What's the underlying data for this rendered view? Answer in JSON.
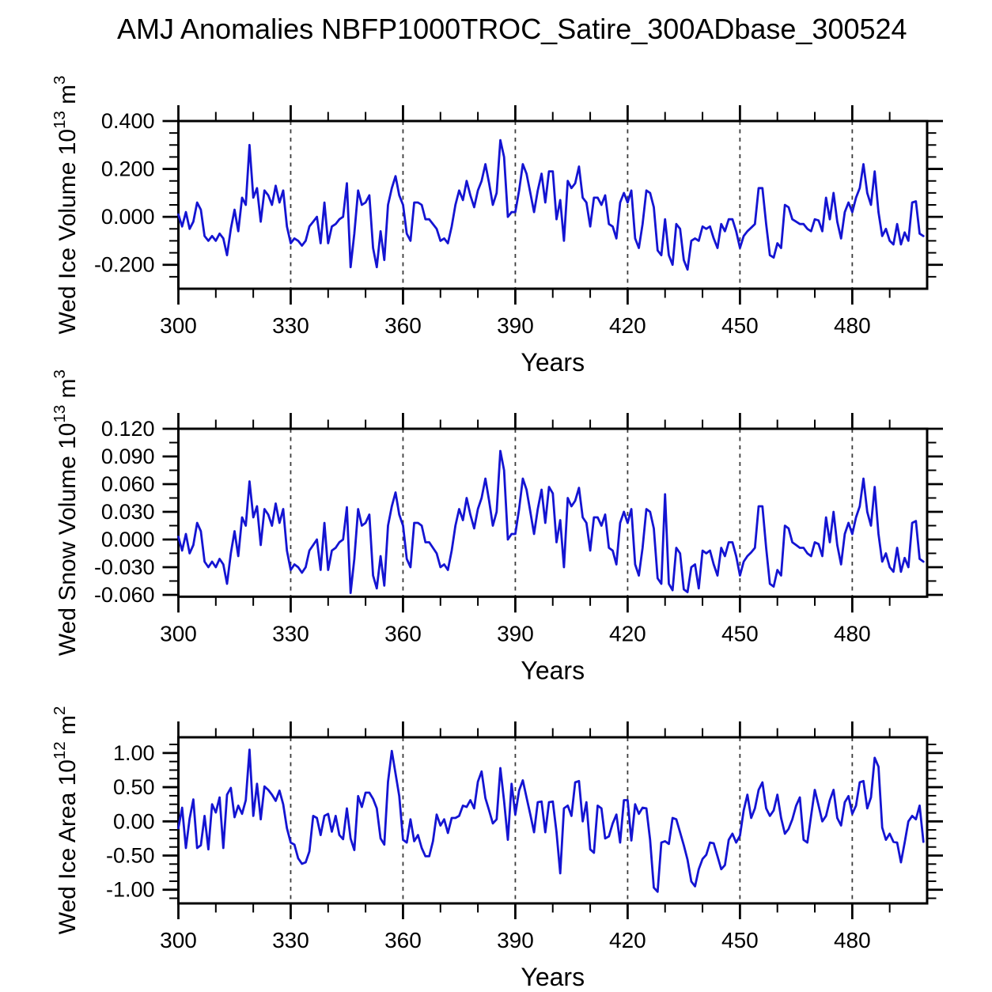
{
  "title": "AMJ Anomalies NBFP1000TROC_Satire_300ADbase_300524",
  "chart_data": {
    "type": "line",
    "title": "AMJ Anomalies NBFP1000TROC_Satire_300ADbase_300524",
    "xlabel": "Years",
    "line_color": "#1414d2",
    "frame_color": "#000000",
    "grid_color": "#3c3c3c",
    "grid": "dashed-vertical",
    "legend": "none",
    "x": {
      "start": 300,
      "step": 1,
      "lim": [
        300,
        500
      ],
      "ticks": [
        300,
        330,
        360,
        390,
        420,
        450,
        480
      ],
      "tick_labels": [
        "300",
        "330",
        "360",
        "390",
        "420",
        "450",
        "480"
      ],
      "minor_step": 10,
      "grid_years": [
        330,
        360,
        390,
        420,
        450,
        480
      ]
    },
    "panels": [
      {
        "name": "ice-volume",
        "ylabel_parts": [
          {
            "text": "Wed Ice Volume 10",
            "sup": false
          },
          {
            "text": "13",
            "sup": true
          },
          {
            "text": " m",
            "sup": false
          },
          {
            "text": "3",
            "sup": true
          }
        ],
        "ylim": [
          -0.3,
          0.4
        ],
        "yticks": [
          0.4,
          0.2,
          0.0,
          -0.2
        ],
        "ytick_labels": [
          "0.400",
          "0.200",
          "0.000",
          "-0.200"
        ],
        "y_minor_step": 0.05,
        "values": [
          0.01,
          -0.04,
          0.02,
          -0.05,
          -0.02,
          0.06,
          0.03,
          -0.08,
          -0.1,
          -0.08,
          -0.1,
          -0.07,
          -0.09,
          -0.16,
          -0.05,
          0.03,
          -0.06,
          0.08,
          0.05,
          0.3,
          0.08,
          0.12,
          -0.02,
          0.11,
          0.09,
          0.05,
          0.13,
          0.06,
          0.11,
          -0.04,
          -0.11,
          -0.09,
          -0.1,
          -0.12,
          -0.1,
          -0.04,
          -0.02,
          0.0,
          -0.11,
          0.06,
          -0.11,
          -0.04,
          -0.03,
          -0.01,
          0.0,
          0.14,
          -0.21,
          -0.07,
          0.11,
          0.05,
          0.06,
          0.09,
          -0.13,
          -0.21,
          -0.06,
          -0.18,
          0.05,
          0.12,
          0.17,
          0.09,
          0.05,
          -0.07,
          -0.1,
          0.06,
          0.06,
          0.05,
          -0.01,
          -0.01,
          -0.03,
          -0.05,
          -0.1,
          -0.09,
          -0.11,
          -0.04,
          0.05,
          0.11,
          0.07,
          0.15,
          0.09,
          0.04,
          0.11,
          0.15,
          0.22,
          0.14,
          0.05,
          0.1,
          0.32,
          0.25,
          0.0,
          0.02,
          0.02,
          0.11,
          0.22,
          0.18,
          0.1,
          0.02,
          0.11,
          0.18,
          0.06,
          0.19,
          0.19,
          -0.01,
          0.07,
          -0.1,
          0.15,
          0.12,
          0.14,
          0.21,
          0.08,
          0.06,
          -0.04,
          0.08,
          0.08,
          0.05,
          0.09,
          -0.03,
          -0.04,
          -0.09,
          0.06,
          0.1,
          0.06,
          0.11,
          -0.09,
          -0.13,
          -0.03,
          0.11,
          0.1,
          0.04,
          -0.14,
          -0.16,
          -0.01,
          -0.16,
          -0.2,
          -0.03,
          -0.05,
          -0.18,
          -0.22,
          -0.1,
          -0.09,
          -0.1,
          -0.04,
          -0.05,
          -0.04,
          -0.09,
          -0.13,
          -0.03,
          -0.06,
          -0.01,
          -0.01,
          -0.06,
          -0.13,
          -0.08,
          -0.06,
          -0.045,
          -0.03,
          0.12,
          0.12,
          -0.03,
          -0.16,
          -0.17,
          -0.11,
          -0.13,
          0.05,
          0.04,
          -0.01,
          -0.02,
          -0.03,
          -0.03,
          -0.05,
          -0.06,
          -0.01,
          -0.015,
          -0.06,
          0.08,
          -0.01,
          0.1,
          -0.02,
          -0.09,
          0.02,
          0.06,
          0.02,
          0.08,
          0.12,
          0.22,
          0.1,
          0.05,
          0.19,
          0.02,
          -0.08,
          -0.05,
          -0.1,
          -0.115,
          -0.03,
          -0.115,
          -0.065,
          -0.1,
          0.06,
          0.065,
          -0.07,
          -0.08
        ]
      },
      {
        "name": "snow-volume",
        "ylabel_parts": [
          {
            "text": "Wed Snow Volume 10",
            "sup": false
          },
          {
            "text": "13",
            "sup": true
          },
          {
            "text": " m",
            "sup": false
          },
          {
            "text": "3",
            "sup": true
          }
        ],
        "ylim": [
          -0.062,
          0.12
        ],
        "yticks": [
          0.12,
          0.09,
          0.06,
          0.03,
          0.0,
          -0.03,
          -0.06
        ],
        "ytick_labels": [
          "0.120",
          "0.090",
          "0.060",
          "0.030",
          "0.000",
          "-0.030",
          "-0.060"
        ],
        "y_minor_step": 0.015,
        "values": [
          0.003,
          -0.012,
          0.006,
          -0.015,
          -0.006,
          0.018,
          0.009,
          -0.024,
          -0.03,
          -0.024,
          -0.03,
          -0.021,
          -0.027,
          -0.048,
          -0.015,
          0.009,
          -0.018,
          0.024,
          0.015,
          0.063,
          0.024,
          0.036,
          -0.006,
          0.033,
          0.027,
          0.015,
          0.039,
          0.018,
          0.033,
          -0.012,
          -0.033,
          -0.027,
          -0.03,
          -0.036,
          -0.03,
          -0.012,
          -0.006,
          0.0,
          -0.033,
          0.018,
          -0.033,
          -0.012,
          -0.009,
          -0.003,
          0.0,
          0.035,
          -0.058,
          -0.021,
          0.033,
          0.015,
          0.018,
          0.027,
          -0.039,
          -0.053,
          -0.018,
          -0.05,
          0.015,
          0.036,
          0.051,
          0.027,
          0.015,
          -0.021,
          -0.03,
          0.018,
          0.018,
          0.015,
          -0.003,
          -0.003,
          -0.009,
          -0.015,
          -0.03,
          -0.027,
          -0.033,
          -0.012,
          0.015,
          0.033,
          0.021,
          0.045,
          0.027,
          0.012,
          0.033,
          0.045,
          0.066,
          0.042,
          0.015,
          0.03,
          0.096,
          0.075,
          0.0,
          0.006,
          0.006,
          0.033,
          0.066,
          0.054,
          0.03,
          0.006,
          0.033,
          0.054,
          0.018,
          0.057,
          0.05,
          -0.003,
          0.021,
          -0.03,
          0.045,
          0.036,
          0.042,
          0.056,
          0.024,
          0.018,
          -0.012,
          0.024,
          0.024,
          0.015,
          0.027,
          -0.009,
          -0.012,
          -0.027,
          0.018,
          0.03,
          0.018,
          0.033,
          -0.027,
          -0.039,
          -0.009,
          0.033,
          0.03,
          0.012,
          -0.042,
          -0.048,
          0.049,
          -0.048,
          -0.055,
          -0.009,
          -0.015,
          -0.054,
          -0.057,
          -0.03,
          -0.027,
          -0.053,
          -0.012,
          -0.015,
          -0.012,
          -0.027,
          -0.039,
          -0.009,
          -0.018,
          -0.003,
          -0.003,
          -0.018,
          -0.039,
          -0.024,
          -0.018,
          -0.014,
          -0.009,
          0.036,
          0.036,
          -0.009,
          -0.048,
          -0.051,
          -0.033,
          -0.039,
          0.015,
          0.012,
          -0.003,
          -0.006,
          -0.009,
          -0.009,
          -0.015,
          -0.018,
          -0.003,
          -0.005,
          -0.018,
          0.024,
          -0.003,
          0.03,
          -0.006,
          -0.027,
          0.006,
          0.018,
          0.006,
          0.024,
          0.036,
          0.066,
          0.03,
          0.015,
          0.057,
          0.006,
          -0.024,
          -0.015,
          -0.03,
          -0.035,
          -0.009,
          -0.035,
          -0.02,
          -0.03,
          0.018,
          0.02,
          -0.021,
          -0.024
        ]
      },
      {
        "name": "ice-area",
        "ylabel_parts": [
          {
            "text": "Wed Ice Area 10",
            "sup": false
          },
          {
            "text": "12",
            "sup": true
          },
          {
            "text": " m",
            "sup": false
          },
          {
            "text": "2",
            "sup": true
          }
        ],
        "ylim": [
          -1.2,
          1.23
        ],
        "yticks": [
          1.0,
          0.5,
          0.0,
          -0.5,
          -1.0
        ],
        "ytick_labels": [
          "1.00",
          "0.50",
          "0.00",
          "-0.50",
          "-1.00"
        ],
        "y_minor_step": 0.125,
        "values": [
          -0.1,
          0.2,
          -0.39,
          0.04,
          0.32,
          -0.39,
          -0.35,
          0.08,
          -0.41,
          0.25,
          0.13,
          0.35,
          -0.39,
          0.39,
          0.49,
          0.06,
          0.23,
          0.11,
          0.31,
          1.05,
          0.08,
          0.55,
          0.03,
          0.51,
          0.46,
          0.39,
          0.3,
          0.45,
          0.25,
          -0.1,
          -0.31,
          -0.34,
          -0.54,
          -0.62,
          -0.6,
          -0.44,
          0.08,
          0.05,
          -0.2,
          0.08,
          0.11,
          -0.15,
          0.08,
          -0.2,
          -0.26,
          0.19,
          -0.25,
          -0.42,
          0.37,
          0.21,
          0.42,
          0.42,
          0.33,
          0.19,
          -0.25,
          -0.34,
          0.58,
          1.03,
          0.7,
          0.37,
          -0.27,
          -0.31,
          0.03,
          -0.29,
          -0.2,
          -0.39,
          -0.51,
          -0.51,
          -0.29,
          0.1,
          -0.06,
          0.03,
          -0.17,
          0.05,
          0.05,
          0.08,
          0.23,
          0.21,
          0.31,
          0.19,
          0.58,
          0.73,
          0.34,
          0.16,
          -0.03,
          0.03,
          0.78,
          0.3,
          -0.27,
          0.55,
          0.1,
          0.45,
          0.6,
          0.35,
          0.1,
          -0.16,
          0.28,
          0.29,
          -0.16,
          0.28,
          0.29,
          -0.16,
          -0.76,
          0.19,
          0.23,
          0.08,
          0.57,
          0.59,
          0.0,
          0.28,
          -0.41,
          -0.46,
          0.23,
          0.19,
          -0.25,
          -0.22,
          -0.03,
          0.1,
          -0.31,
          0.31,
          0.31,
          -0.28,
          0.25,
          0.11,
          0.2,
          0.19,
          -0.27,
          -0.97,
          -1.03,
          -0.31,
          -0.29,
          -0.33,
          0.05,
          0.03,
          -0.16,
          -0.35,
          -0.56,
          -0.88,
          -0.95,
          -0.7,
          -0.55,
          -0.49,
          -0.31,
          -0.32,
          -0.51,
          -0.7,
          -0.64,
          -0.27,
          -0.18,
          -0.31,
          -0.21,
          0.16,
          0.39,
          0.05,
          0.19,
          0.46,
          0.57,
          0.19,
          0.08,
          0.16,
          0.39,
          0.05,
          -0.18,
          -0.11,
          0.03,
          0.23,
          0.35,
          -0.27,
          -0.31,
          0.08,
          0.46,
          0.23,
          0.0,
          0.08,
          0.31,
          0.46,
          0.05,
          -0.06,
          0.28,
          0.37,
          0.11,
          0.23,
          0.57,
          0.59,
          0.19,
          0.35,
          0.93,
          0.8,
          -0.09,
          -0.27,
          -0.18,
          -0.3,
          -0.31,
          -0.6,
          -0.31,
          0.0,
          0.08,
          0.03,
          0.23,
          -0.3
        ]
      }
    ]
  }
}
